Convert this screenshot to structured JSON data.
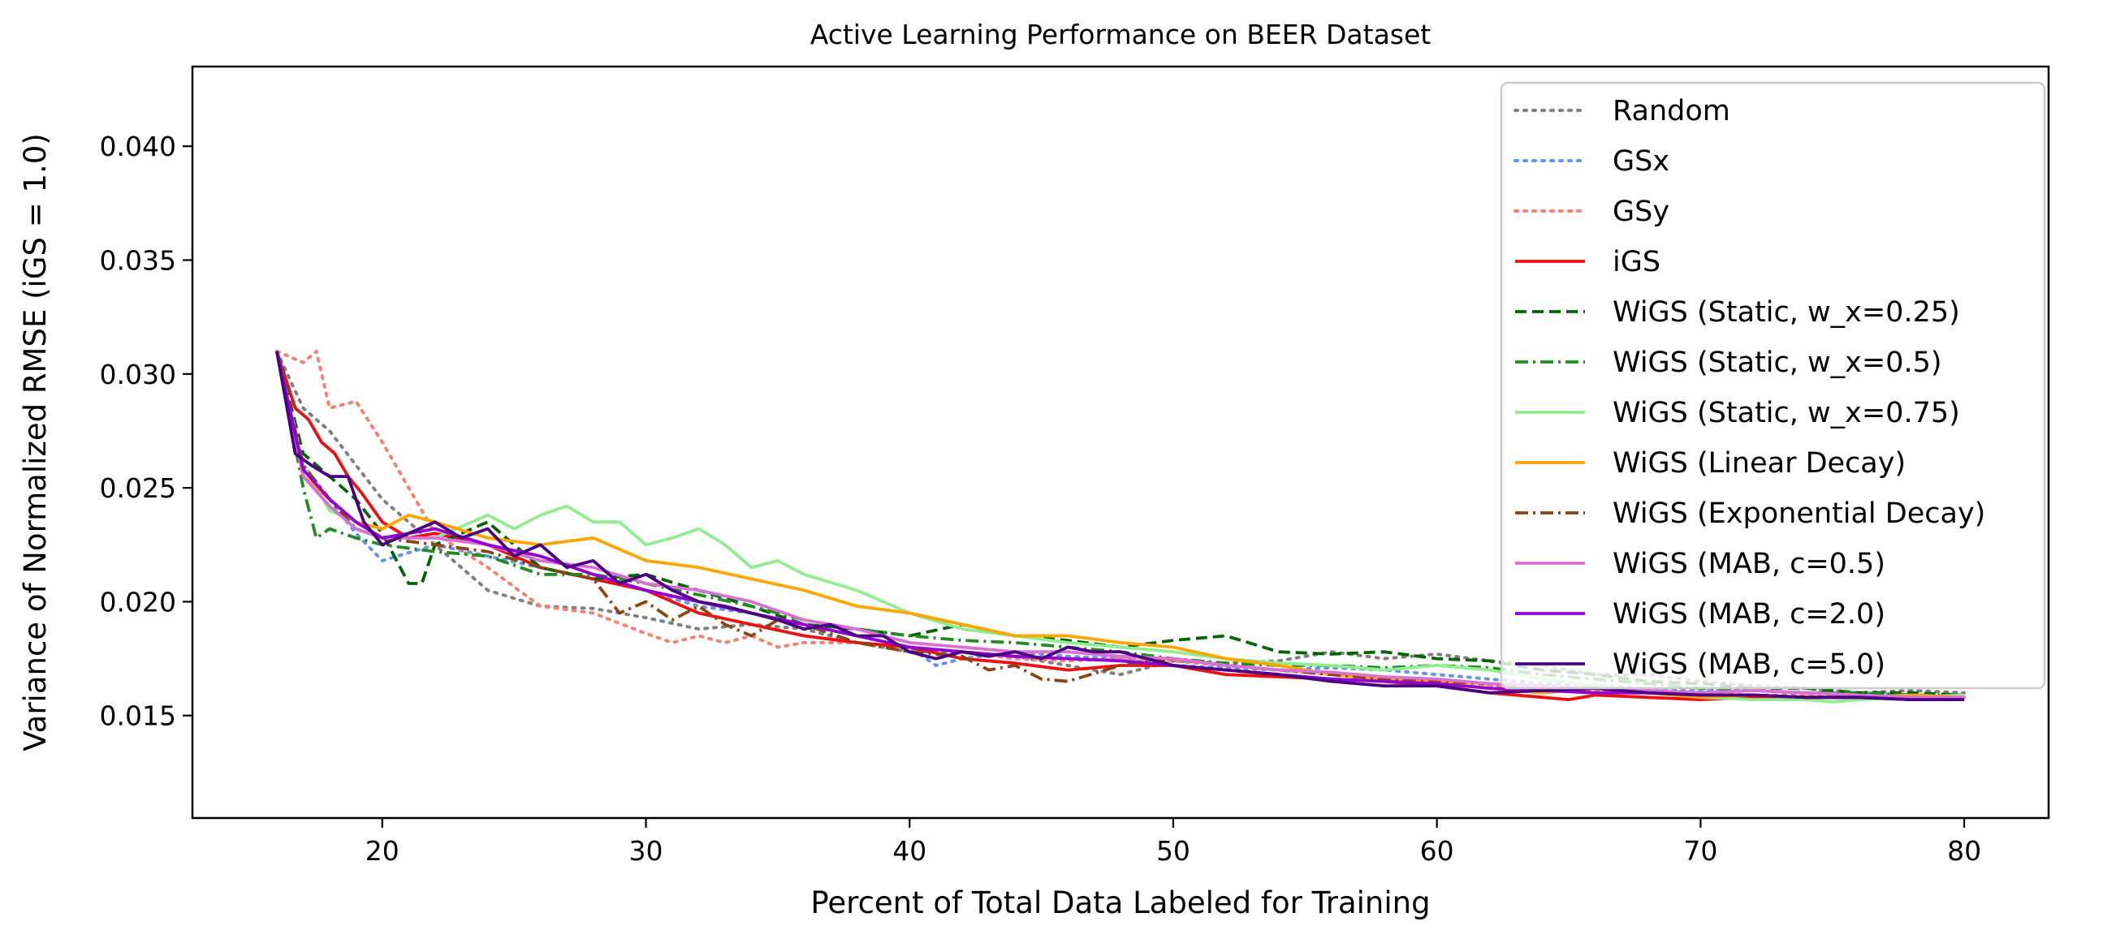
{
  "chart_data": {
    "type": "line",
    "title": "Active Learning Performance on BEER Dataset",
    "xlabel": "Percent of Total Data Labeled for Training",
    "ylabel": "Variance of Normalized RMSE (iGS = 1.0)",
    "xlim": [
      12.8,
      83.2
    ],
    "ylim": [
      0.0105,
      0.0435
    ],
    "xticks": [
      20,
      30,
      40,
      50,
      60,
      70,
      80
    ],
    "yticks": [
      0.015,
      0.02,
      0.025,
      0.03,
      0.035,
      0.04
    ],
    "xtick_labels": [
      "20",
      "30",
      "40",
      "50",
      "60",
      "70",
      "80"
    ],
    "ytick_labels": [
      "0.015",
      "0.020",
      "0.025",
      "0.030",
      "0.035",
      "0.040"
    ],
    "grid": false,
    "legend_position": "upper-right",
    "series": [
      {
        "name": "Random",
        "color": "#808080",
        "dash": "dotted",
        "x": [
          16,
          17,
          18,
          19,
          20,
          22,
          24,
          26,
          28,
          30,
          32,
          34,
          36,
          38,
          40,
          42,
          44,
          46,
          48,
          50,
          52,
          54,
          56,
          58,
          60,
          62,
          64,
          66,
          68,
          70,
          72,
          74,
          76,
          78,
          80
        ],
        "y": [
          0.031,
          0.0285,
          0.0275,
          0.026,
          0.0245,
          0.0225,
          0.0205,
          0.0198,
          0.0197,
          0.0193,
          0.0188,
          0.019,
          0.0188,
          0.0182,
          0.0178,
          0.0178,
          0.0176,
          0.0172,
          0.0168,
          0.0174,
          0.0173,
          0.0174,
          0.0178,
          0.0175,
          0.0177,
          0.0174,
          0.0172,
          0.0168,
          0.0168,
          0.0165,
          0.0163,
          0.0162,
          0.016,
          0.0161,
          0.016
        ]
      },
      {
        "name": "GSx",
        "color": "#6495ed",
        "dash": "dotted",
        "x": [
          16,
          17,
          18,
          19,
          20,
          22,
          24,
          26,
          28,
          30,
          32,
          34,
          36,
          38,
          40,
          41,
          42,
          44,
          46,
          48,
          50,
          52,
          54,
          56,
          58,
          60,
          62,
          64,
          66,
          68,
          70,
          72,
          74,
          76,
          78,
          80
        ],
        "y": [
          0.031,
          0.026,
          0.0245,
          0.023,
          0.0218,
          0.0225,
          0.022,
          0.0215,
          0.021,
          0.0205,
          0.0198,
          0.0195,
          0.019,
          0.0185,
          0.018,
          0.0172,
          0.0175,
          0.0178,
          0.0176,
          0.0175,
          0.0172,
          0.0171,
          0.017,
          0.0171,
          0.017,
          0.0168,
          0.0166,
          0.0164,
          0.0163,
          0.0162,
          0.0161,
          0.0161,
          0.016,
          0.016,
          0.0159,
          0.0158
        ]
      },
      {
        "name": "GSy",
        "color": "#fa8072",
        "dash": "dotted",
        "x": [
          16,
          17,
          17.5,
          18,
          19,
          20,
          21,
          22,
          24,
          26,
          28,
          30,
          31,
          32,
          33,
          34,
          35,
          36,
          38,
          40,
          42,
          44,
          46,
          48,
          50,
          52,
          54,
          56,
          58,
          60,
          62,
          64,
          66,
          68,
          70,
          72,
          74,
          76,
          78,
          80
        ],
        "y": [
          0.031,
          0.0305,
          0.031,
          0.0285,
          0.0288,
          0.027,
          0.025,
          0.023,
          0.0215,
          0.0198,
          0.0195,
          0.0186,
          0.0182,
          0.0185,
          0.0182,
          0.0185,
          0.018,
          0.0182,
          0.0182,
          0.018,
          0.0178,
          0.0175,
          0.0174,
          0.0175,
          0.0174,
          0.0172,
          0.017,
          0.0168,
          0.0166,
          0.0164,
          0.0163,
          0.0162,
          0.0161,
          0.016,
          0.016,
          0.0159,
          0.0159,
          0.0158,
          0.0158,
          0.0158
        ]
      },
      {
        "name": "iGS",
        "color": "#ee1010",
        "dash": "solid",
        "x": [
          16,
          16.7,
          17.2,
          17.7,
          18.2,
          18.7,
          19.2,
          20,
          21,
          22,
          24,
          26,
          28,
          30,
          32,
          34,
          36,
          38,
          40,
          42,
          44,
          46,
          48,
          50,
          52,
          54,
          56,
          58,
          60,
          62,
          64,
          65,
          66,
          68,
          70,
          72,
          74,
          76,
          78,
          80
        ],
        "y": [
          0.031,
          0.0285,
          0.028,
          0.027,
          0.0265,
          0.0255,
          0.0248,
          0.0235,
          0.0228,
          0.023,
          0.0225,
          0.0215,
          0.021,
          0.0205,
          0.0195,
          0.019,
          0.0185,
          0.0182,
          0.018,
          0.0175,
          0.0173,
          0.017,
          0.0172,
          0.0172,
          0.0168,
          0.0167,
          0.0166,
          0.0165,
          0.0163,
          0.016,
          0.0158,
          0.0157,
          0.0159,
          0.0158,
          0.0157,
          0.0158,
          0.0158,
          0.0158,
          0.0157,
          0.0157
        ]
      },
      {
        "name": "WiGS (Static, w_x=0.25)",
        "color": "#006400",
        "dash": "dashed",
        "x": [
          16,
          17,
          18,
          19,
          20,
          21,
          21.5,
          22,
          23,
          24,
          26,
          28,
          30,
          32,
          34,
          36,
          38,
          40,
          42,
          44,
          46,
          48,
          50,
          52,
          54,
          56,
          58,
          60,
          62,
          64,
          66,
          68,
          70,
          72,
          74,
          76,
          78,
          80
        ],
        "y": [
          0.031,
          0.0265,
          0.0255,
          0.0245,
          0.023,
          0.0208,
          0.0208,
          0.0225,
          0.023,
          0.0235,
          0.0215,
          0.021,
          0.0212,
          0.0205,
          0.0198,
          0.019,
          0.0188,
          0.0185,
          0.019,
          0.0185,
          0.0183,
          0.018,
          0.0183,
          0.0185,
          0.0178,
          0.0177,
          0.0178,
          0.0175,
          0.0174,
          0.017,
          0.0168,
          0.0165,
          0.0164,
          0.0162,
          0.0162,
          0.016,
          0.016,
          0.0159
        ]
      },
      {
        "name": "WiGS (Static, w_x=0.5)",
        "color": "#228b22",
        "dash": "dashdot",
        "x": [
          16,
          17,
          17.5,
          18,
          19,
          20,
          22,
          24,
          26,
          28,
          30,
          32,
          34,
          36,
          38,
          40,
          42,
          44,
          46,
          48,
          50,
          52,
          54,
          56,
          58,
          60,
          62,
          64,
          66,
          68,
          70,
          72,
          74,
          76,
          78,
          80
        ],
        "y": [
          0.031,
          0.025,
          0.0228,
          0.0232,
          0.0228,
          0.0225,
          0.0222,
          0.022,
          0.0212,
          0.0212,
          0.0208,
          0.0203,
          0.0198,
          0.0192,
          0.0188,
          0.0185,
          0.0183,
          0.0182,
          0.018,
          0.0178,
          0.0175,
          0.0173,
          0.0172,
          0.0172,
          0.0171,
          0.0172,
          0.0171,
          0.0168,
          0.0166,
          0.0164,
          0.0162,
          0.0161,
          0.016,
          0.016,
          0.0159,
          0.0159
        ]
      },
      {
        "name": "WiGS (Static, w_x=0.75)",
        "color": "#90ee90",
        "dash": "solid",
        "x": [
          16,
          17,
          18,
          19,
          20,
          22,
          24,
          25,
          26,
          27,
          28,
          29,
          30,
          31,
          32,
          33,
          34,
          35,
          36,
          38,
          40,
          42,
          44,
          46,
          48,
          50,
          52,
          54,
          56,
          58,
          60,
          62,
          64,
          66,
          68,
          70,
          72,
          74,
          75,
          76,
          78,
          80
        ],
        "y": [
          0.031,
          0.026,
          0.024,
          0.0235,
          0.0228,
          0.0228,
          0.0238,
          0.0232,
          0.0238,
          0.0242,
          0.0235,
          0.0235,
          0.0225,
          0.0228,
          0.0232,
          0.0225,
          0.0215,
          0.0218,
          0.0212,
          0.0205,
          0.0195,
          0.0188,
          0.0185,
          0.0182,
          0.018,
          0.0178,
          0.0175,
          0.0173,
          0.0172,
          0.017,
          0.0172,
          0.017,
          0.0166,
          0.0163,
          0.016,
          0.0158,
          0.0157,
          0.0157,
          0.0156,
          0.0157,
          0.0158,
          0.0159
        ]
      },
      {
        "name": "WiGS (Linear Decay)",
        "color": "#ffa500",
        "dash": "solid",
        "x": [
          16,
          17,
          18,
          19,
          20,
          21,
          22,
          24,
          26,
          28,
          30,
          32,
          34,
          36,
          38,
          40,
          42,
          44,
          46,
          48,
          50,
          52,
          54,
          56,
          58,
          60,
          62,
          64,
          66,
          68,
          70,
          72,
          74,
          76,
          78,
          80
        ],
        "y": [
          0.031,
          0.0255,
          0.0245,
          0.0235,
          0.0232,
          0.0238,
          0.0235,
          0.0228,
          0.0225,
          0.0228,
          0.0218,
          0.0215,
          0.021,
          0.0205,
          0.0198,
          0.0195,
          0.019,
          0.0185,
          0.0185,
          0.0182,
          0.018,
          0.0175,
          0.0172,
          0.0168,
          0.0166,
          0.0165,
          0.0162,
          0.016,
          0.0162,
          0.016,
          0.0158,
          0.0159,
          0.0158,
          0.0158,
          0.0159,
          0.0158
        ]
      },
      {
        "name": "WiGS (Exponential Decay)",
        "color": "#8b4513",
        "dash": "dashdot",
        "x": [
          16,
          17,
          18,
          19,
          20,
          22,
          24,
          26,
          28,
          29,
          30,
          31,
          32,
          33,
          34,
          35,
          36,
          38,
          40,
          42,
          43,
          44,
          45,
          46,
          48,
          50,
          52,
          54,
          56,
          58,
          60,
          62,
          64,
          66,
          68,
          70,
          72,
          74,
          76,
          78,
          80
        ],
        "y": [
          0.031,
          0.026,
          0.0245,
          0.0232,
          0.0228,
          0.0225,
          0.0222,
          0.0215,
          0.021,
          0.0195,
          0.02,
          0.0192,
          0.0198,
          0.019,
          0.0185,
          0.0192,
          0.019,
          0.0182,
          0.0178,
          0.0176,
          0.017,
          0.0172,
          0.0166,
          0.0165,
          0.0172,
          0.0175,
          0.0172,
          0.017,
          0.0168,
          0.0166,
          0.0165,
          0.0164,
          0.0162,
          0.016,
          0.016,
          0.0159,
          0.0159,
          0.0158,
          0.0158,
          0.0158,
          0.0157
        ]
      },
      {
        "name": "WiGS (MAB, c=0.5)",
        "color": "#da70d6",
        "dash": "solid",
        "x": [
          16,
          17,
          18,
          19,
          20,
          22,
          24,
          26,
          28,
          30,
          32,
          34,
          36,
          38,
          40,
          42,
          44,
          46,
          48,
          50,
          52,
          54,
          56,
          58,
          60,
          62,
          64,
          66,
          68,
          70,
          72,
          74,
          76,
          78,
          80
        ],
        "y": [
          0.031,
          0.0255,
          0.0242,
          0.0232,
          0.0228,
          0.0228,
          0.0225,
          0.0218,
          0.0215,
          0.0208,
          0.0205,
          0.02,
          0.0192,
          0.0188,
          0.0182,
          0.018,
          0.0178,
          0.0178,
          0.0176,
          0.0175,
          0.0172,
          0.017,
          0.0169,
          0.0167,
          0.0166,
          0.0164,
          0.0163,
          0.0162,
          0.0161,
          0.016,
          0.0161,
          0.016,
          0.0159,
          0.0158,
          0.0158
        ]
      },
      {
        "name": "WiGS (MAB, c=2.0)",
        "color": "#9400d3",
        "dash": "solid",
        "x": [
          16,
          17,
          18,
          19,
          20,
          22,
          24,
          26,
          28,
          30,
          32,
          34,
          36,
          38,
          40,
          42,
          44,
          46,
          48,
          50,
          52,
          54,
          56,
          58,
          60,
          62,
          64,
          66,
          68,
          70,
          72,
          74,
          76,
          78,
          80
        ],
        "y": [
          0.031,
          0.0258,
          0.0245,
          0.0235,
          0.0228,
          0.0232,
          0.0225,
          0.022,
          0.0212,
          0.0205,
          0.02,
          0.0195,
          0.019,
          0.0185,
          0.018,
          0.0178,
          0.0176,
          0.0175,
          0.0174,
          0.0172,
          0.017,
          0.0168,
          0.0166,
          0.0165,
          0.0164,
          0.0162,
          0.0161,
          0.016,
          0.016,
          0.0159,
          0.0159,
          0.0158,
          0.0158,
          0.0157,
          0.0157
        ]
      },
      {
        "name": "WiGS (MAB, c=5.0)",
        "color": "#4b0082",
        "dash": "solid",
        "x": [
          16,
          16.7,
          17.3,
          18,
          18.7,
          19.3,
          20,
          21,
          22,
          23,
          24,
          25,
          26,
          27,
          28,
          29,
          30,
          31,
          32,
          33,
          34,
          35,
          36,
          37,
          38,
          39,
          40,
          41,
          42,
          43,
          44,
          45,
          46,
          47,
          48,
          49,
          50,
          52,
          54,
          56,
          58,
          60,
          62,
          64,
          66,
          68,
          70,
          72,
          74,
          76,
          78,
          80
        ],
        "y": [
          0.031,
          0.0265,
          0.026,
          0.0255,
          0.0255,
          0.0235,
          0.0225,
          0.023,
          0.0235,
          0.0228,
          0.0232,
          0.022,
          0.0225,
          0.0215,
          0.0218,
          0.0208,
          0.0212,
          0.0205,
          0.02,
          0.0198,
          0.0195,
          0.0192,
          0.0188,
          0.019,
          0.0185,
          0.0185,
          0.0178,
          0.0175,
          0.0178,
          0.0176,
          0.0178,
          0.0175,
          0.018,
          0.0178,
          0.0178,
          0.0175,
          0.0172,
          0.017,
          0.0168,
          0.0165,
          0.0163,
          0.0163,
          0.016,
          0.0161,
          0.0162,
          0.016,
          0.0159,
          0.0159,
          0.0158,
          0.0158,
          0.0157,
          0.0157
        ]
      }
    ]
  }
}
